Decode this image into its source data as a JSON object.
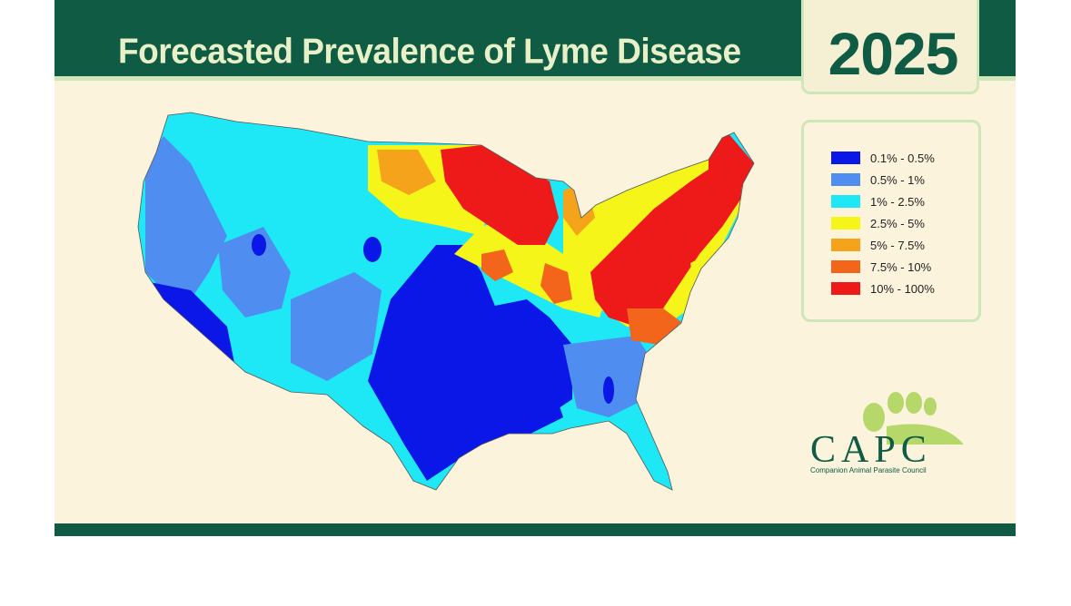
{
  "header": {
    "title": "Forecasted Prevalence of Lyme Disease"
  },
  "year": "2025",
  "legend": {
    "items": [
      {
        "label": "0.1% - 0.5%",
        "color": "#0a17e6"
      },
      {
        "label": "0.5% - 1%",
        "color": "#4f8ef0"
      },
      {
        "label": "1% - 2.5%",
        "color": "#1ee8f5"
      },
      {
        "label": "2.5% - 5%",
        "color": "#f5f51a"
      },
      {
        "label": "5% - 7.5%",
        "color": "#f5a31a"
      },
      {
        "label": "7.5% - 10%",
        "color": "#f2651a"
      },
      {
        "label": "10% - 100%",
        "color": "#ee1a1a"
      }
    ]
  },
  "logo": {
    "name": "CAPC",
    "subtitle": "Companion Animal Parasite Council"
  },
  "colors": {
    "header": "#0f5b44",
    "background": "#fbf3dc",
    "accent": "#cfe6b8"
  }
}
